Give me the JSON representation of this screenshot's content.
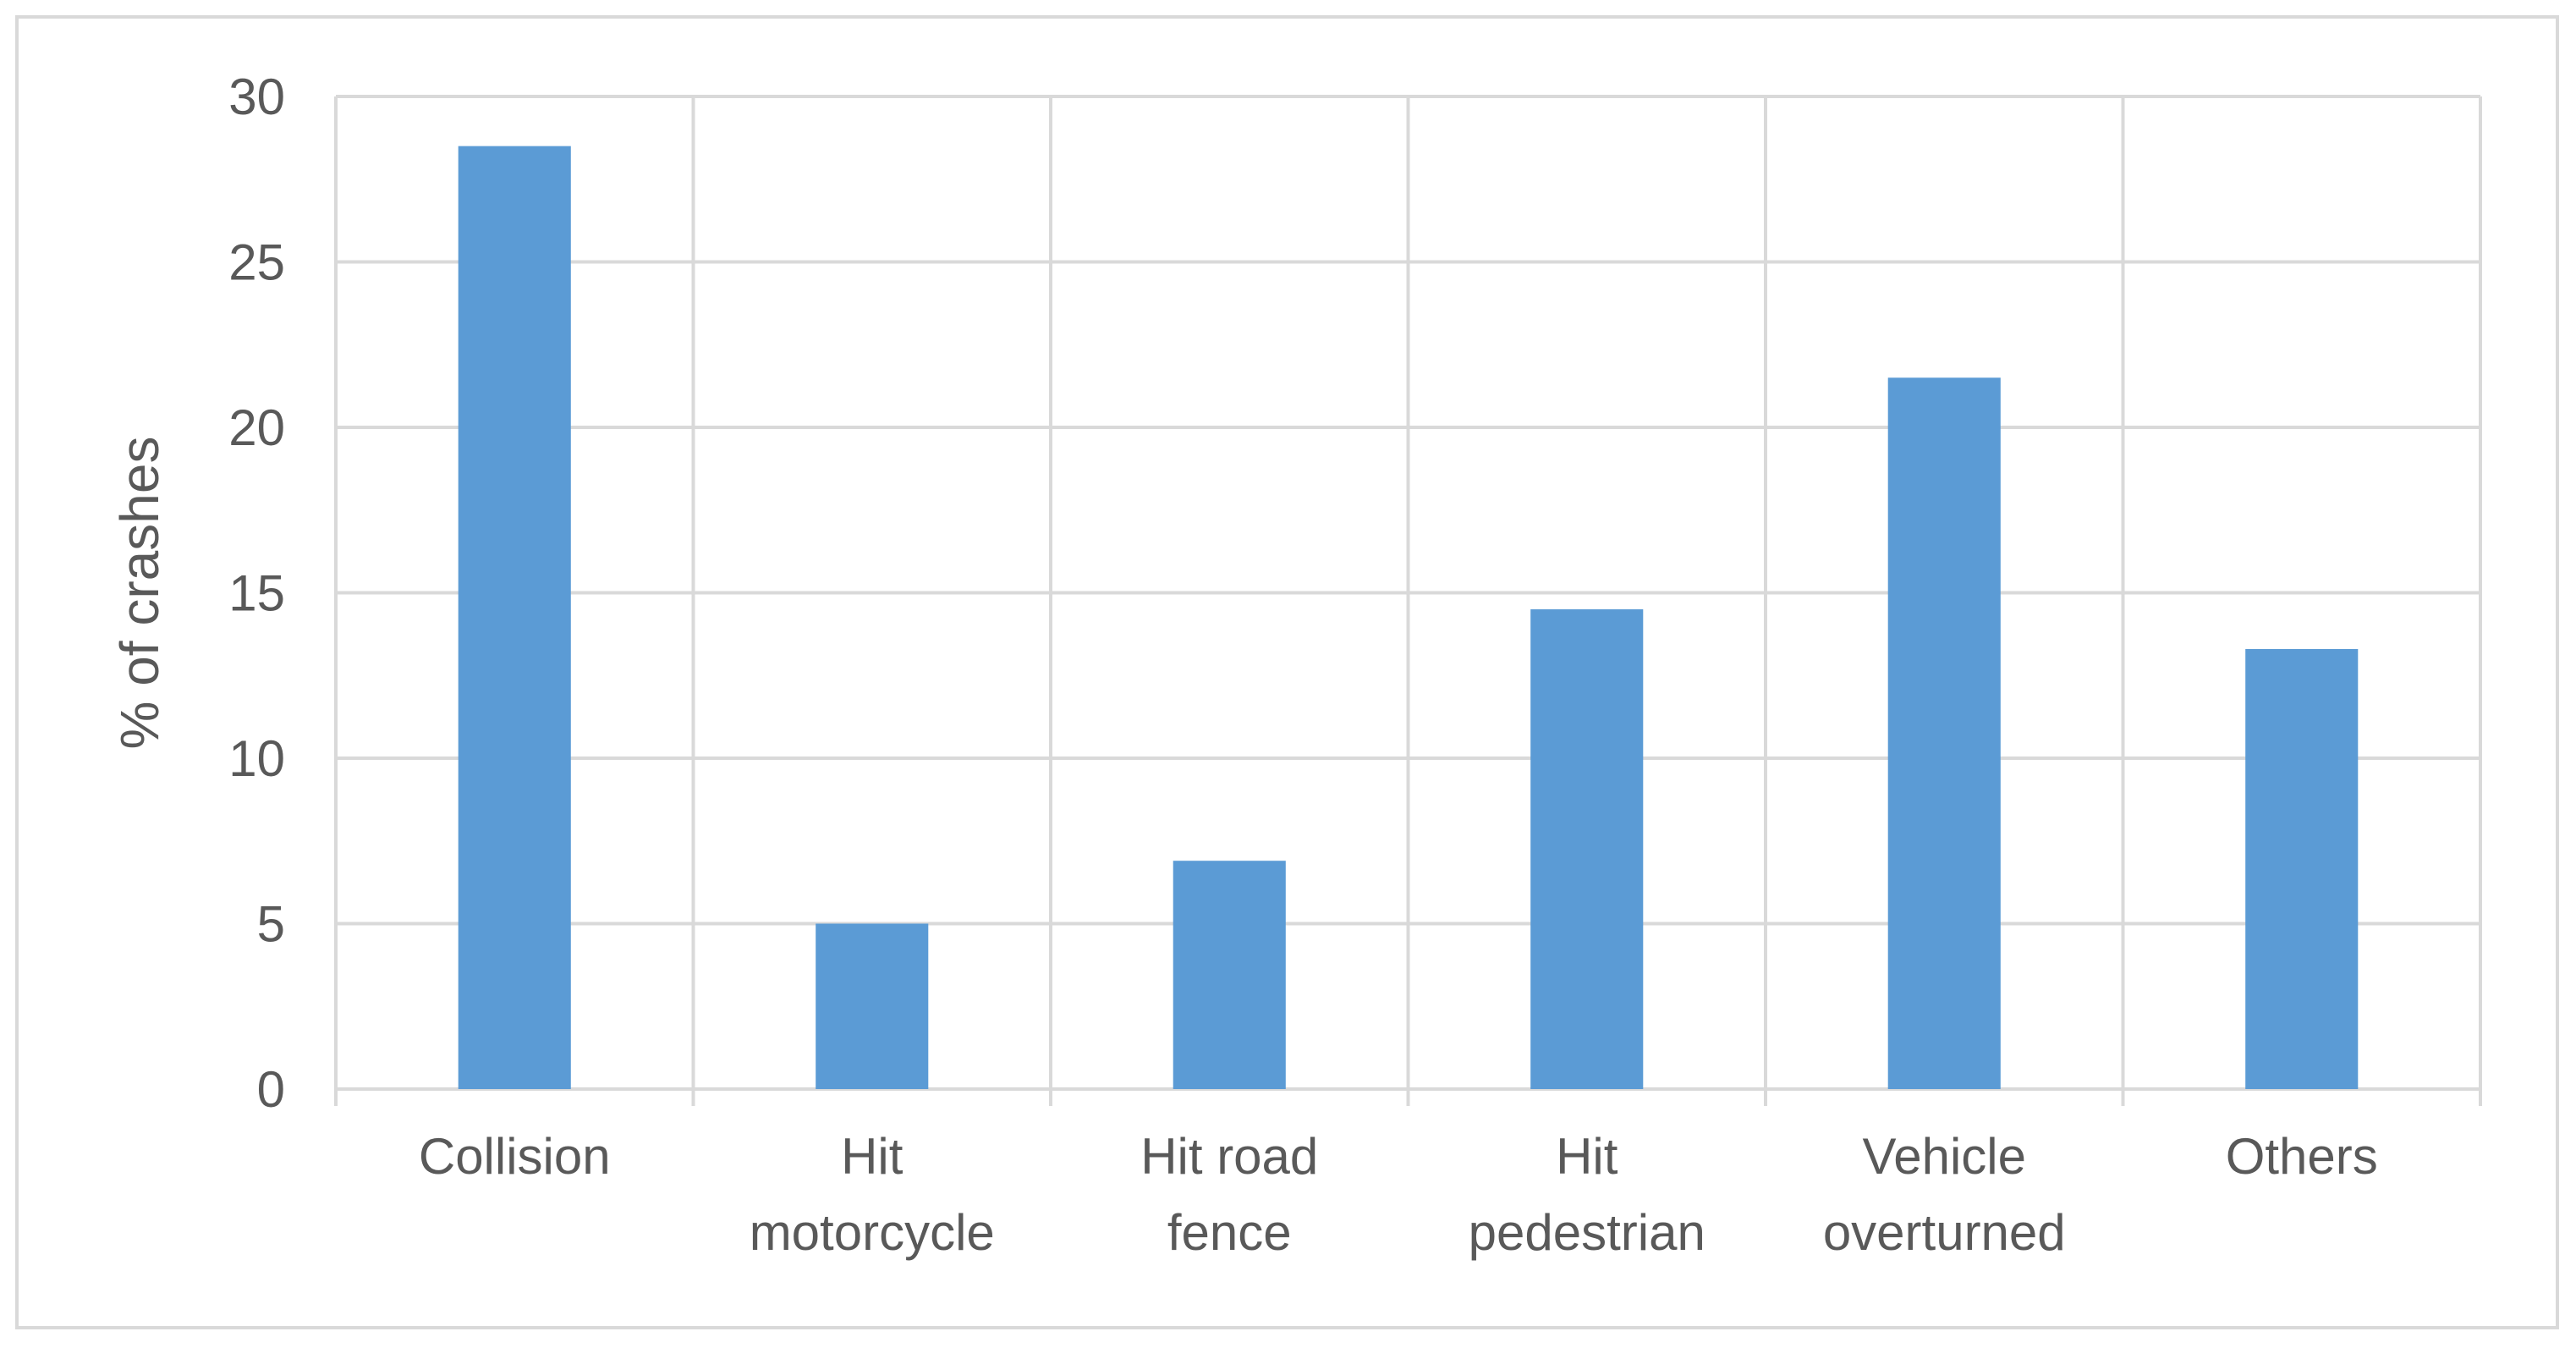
{
  "chart_data": {
    "type": "bar",
    "title": "",
    "xlabel": "",
    "ylabel": "% of crashes",
    "ylim": [
      0,
      30
    ],
    "yticks": [
      0,
      5,
      10,
      15,
      20,
      25,
      30
    ],
    "grid": true,
    "legend": "none",
    "categories": [
      [
        "Collision"
      ],
      [
        "Hit",
        "motorcycle"
      ],
      [
        "Hit road",
        "fence"
      ],
      [
        "Hit",
        "pedestrian"
      ],
      [
        "Vehicle",
        "overturned"
      ],
      [
        "Others"
      ]
    ],
    "values": [
      28.5,
      5.0,
      6.9,
      14.5,
      21.5,
      13.3
    ],
    "colors": {
      "bar": "#5b9bd5",
      "grid": "#d9d9d9",
      "text": "#595959",
      "border": "#d9d9d9"
    }
  }
}
